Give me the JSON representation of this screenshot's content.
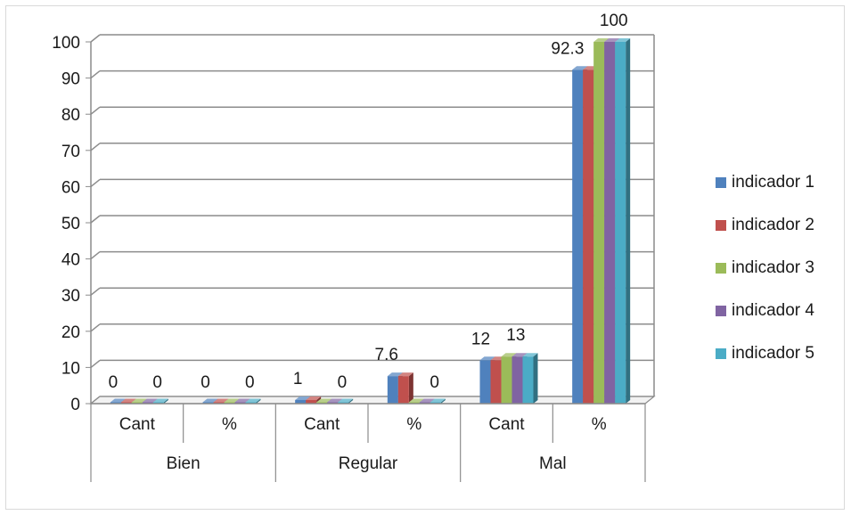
{
  "chart_data": {
    "type": "bar",
    "title": "",
    "xlabel": "",
    "ylabel": "",
    "ylim": [
      0,
      100
    ],
    "yticks": [
      0,
      10,
      20,
      30,
      40,
      50,
      60,
      70,
      80,
      90,
      100
    ],
    "grid": true,
    "legend_position": "right",
    "three_d": true,
    "category_groups": [
      {
        "label": "Bien",
        "subcategories": [
          "Cant",
          "%"
        ]
      },
      {
        "label": "Regular",
        "subcategories": [
          "Cant",
          "%"
        ]
      },
      {
        "label": "Mal",
        "subcategories": [
          "Cant",
          "%"
        ]
      }
    ],
    "series": [
      {
        "name": "indicador 1",
        "color": "#4F81BD",
        "values": [
          0,
          0,
          1,
          7.6,
          12,
          92.3
        ]
      },
      {
        "name": "indicador 2",
        "color": "#C0504D",
        "values": [
          0,
          0,
          1,
          7.6,
          12,
          92.3
        ]
      },
      {
        "name": "indicador 3",
        "color": "#9BBB59",
        "values": [
          0,
          0,
          0,
          0,
          13,
          100
        ]
      },
      {
        "name": "indicador 4",
        "color": "#8064A2",
        "values": [
          0,
          0,
          0,
          0,
          13,
          100
        ]
      },
      {
        "name": "indicador 5",
        "color": "#4BACC6",
        "values": [
          0,
          0,
          0,
          0,
          13,
          100
        ]
      }
    ],
    "data_labels": [
      {
        "cat": 0,
        "text": "0",
        "dx": -0.26
      },
      {
        "cat": 0,
        "text": "0",
        "dx": 0.22
      },
      {
        "cat": 1,
        "text": "0",
        "dx": -0.26
      },
      {
        "cat": 1,
        "text": "0",
        "dx": 0.22
      },
      {
        "cat": 2,
        "text": "1",
        "dx": -0.26
      },
      {
        "cat": 2,
        "text": "0",
        "dx": 0.22
      },
      {
        "cat": 3,
        "text": "7.6",
        "dx": -0.3
      },
      {
        "cat": 3,
        "text": "0",
        "dx": 0.22
      },
      {
        "cat": 4,
        "text": "12",
        "dx": -0.28
      },
      {
        "cat": 4,
        "text": "13",
        "dx": 0.1
      },
      {
        "cat": 5,
        "text": "92.3",
        "dx": -0.34
      },
      {
        "cat": 5,
        "text": "100",
        "dx": 0.16
      }
    ]
  }
}
